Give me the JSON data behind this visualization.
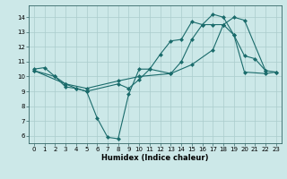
{
  "title": "",
  "xlabel": "Humidex (Indice chaleur)",
  "background_color": "#cce8e8",
  "grid_color": "#aacccc",
  "line_color": "#1a6b6b",
  "xlim": [
    -0.5,
    23.5
  ],
  "ylim": [
    5.5,
    14.8
  ],
  "yticks": [
    6,
    7,
    8,
    9,
    10,
    11,
    12,
    13,
    14
  ],
  "xticks": [
    0,
    1,
    2,
    3,
    4,
    5,
    6,
    7,
    8,
    9,
    10,
    11,
    12,
    13,
    14,
    15,
    16,
    17,
    18,
    19,
    20,
    21,
    22,
    23
  ],
  "line1_x": [
    0,
    1,
    2,
    3,
    4,
    5,
    6,
    7,
    8,
    9,
    10,
    11,
    12,
    13,
    14,
    15,
    16,
    17,
    18,
    19,
    20,
    21,
    22
  ],
  "line1_y": [
    10.5,
    10.6,
    10.0,
    9.3,
    9.2,
    9.0,
    7.2,
    5.9,
    5.8,
    8.8,
    10.5,
    10.5,
    11.5,
    12.4,
    12.5,
    13.7,
    13.5,
    14.2,
    14.0,
    12.8,
    11.4,
    11.2,
    10.4
  ],
  "line2_x": [
    0,
    2,
    3,
    4,
    5,
    8,
    9,
    10,
    11,
    13,
    14,
    15,
    16,
    17,
    18,
    19,
    20,
    22,
    23
  ],
  "line2_y": [
    10.4,
    10.0,
    9.5,
    9.2,
    9.0,
    9.5,
    9.2,
    9.8,
    10.5,
    10.2,
    11.0,
    12.5,
    13.5,
    13.5,
    13.5,
    12.8,
    10.3,
    10.2,
    10.3
  ],
  "line3_x": [
    0,
    3,
    5,
    8,
    10,
    13,
    15,
    17,
    18,
    19,
    20,
    22,
    23
  ],
  "line3_y": [
    10.4,
    9.5,
    9.2,
    9.7,
    10.0,
    10.2,
    10.8,
    11.8,
    13.5,
    14.0,
    13.8,
    10.4,
    10.3
  ]
}
